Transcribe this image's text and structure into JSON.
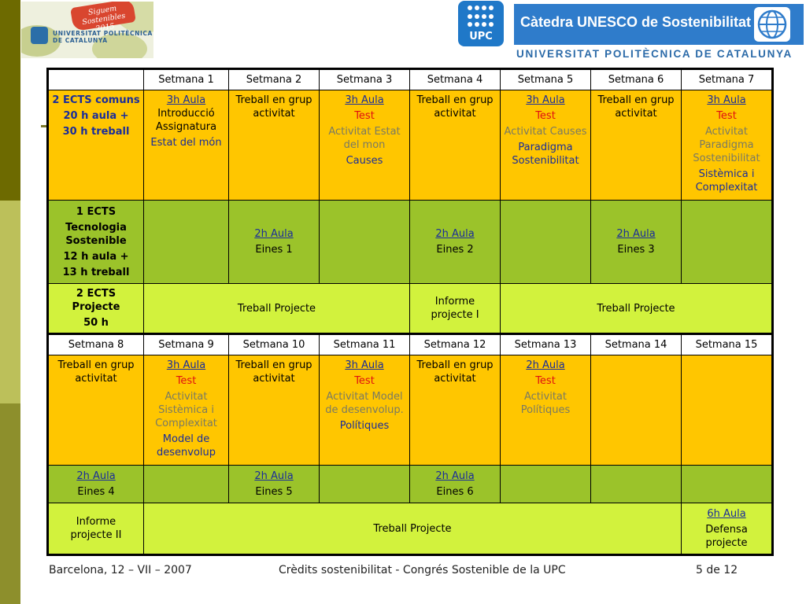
{
  "header": {
    "left_logo": {
      "line1": "Siguem",
      "line2": "Sostenibles 2015",
      "line3": "UNIVERSITAT POLITÈCNICA",
      "line4": "DE CATALUNYA"
    },
    "upc_logo": "UPC",
    "unesco_title": "Càtedra UNESCO de Sostenibilitat",
    "university": "UNIVERSITAT POLITÈCNICA DE CATALUNYA"
  },
  "table": {
    "week_headers_1": [
      "Setmana 1",
      "Setmana 2",
      "Setmana 3",
      "Setmana 4",
      "Setmana 5",
      "Setmana 6",
      "Setmana 7"
    ],
    "week_headers_2": [
      "Setmana 8",
      "Setmana 9",
      "Setmana 10",
      "Setmana 11",
      "Setmana 12",
      "Setmana 13",
      "Setmana 14",
      "Setmana 15"
    ],
    "row_comuns": {
      "label": [
        "2 ECTS comuns",
        "20 h aula +",
        "30 h treball"
      ],
      "w1": [
        "3h Aula",
        "Introducció Assignatura",
        "Estat del món"
      ],
      "w2": "Treball en grup activitat",
      "w3": [
        "3h Aula",
        "Test",
        "Activitat Estat del mon",
        "Causes"
      ],
      "w4": "Treball en grup activitat",
      "w5": [
        "3h Aula",
        "Test",
        "Activitat Causes",
        "Paradigma Sostenibilitat"
      ],
      "w6": "Treball en grup activitat",
      "w7": [
        "3h Aula",
        "Test",
        "Activitat Paradigma Sostenibilitat",
        "Sistèmica i Complexitat"
      ]
    },
    "row_tecnologia": {
      "label": [
        "1 ECTS",
        "Tecnologia Sostenible",
        "12 h aula +",
        "13 h treball"
      ],
      "w2": [
        "2h Aula",
        "Eines 1"
      ],
      "w4": [
        "2h Aula",
        "Eines 2"
      ],
      "w6": [
        "2h Aula",
        "Eines 3"
      ]
    },
    "row_projecte": {
      "label": [
        "2 ECTS Projecte",
        "50 h"
      ],
      "span1": "Treball Projecte",
      "w4": "Informe projecte I",
      "span2": "Treball Projecte"
    },
    "row_comuns_2": {
      "w8": "Treball en grup activitat",
      "w9": [
        "3h Aula",
        "Test",
        "Activitat Sistèmica i Complexitat",
        "Model de desenvolup"
      ],
      "w10": "Treball en grup activitat",
      "w11": [
        "3h Aula",
        "Test",
        "Activitat Model de desenvolup.",
        "Polítiques"
      ],
      "w12": "Treball en grup activitat",
      "w13": [
        "2h Aula",
        "Test",
        "Activitat Polítiques"
      ]
    },
    "row_tecnologia_2": {
      "w8": [
        "2h Aula",
        "Eines 4"
      ],
      "w10": [
        "2h Aula",
        "Eines 5"
      ],
      "w12": [
        "2h Aula",
        "Eines 6"
      ]
    },
    "row_projecte_2": {
      "w8": "Informe projecte II",
      "span": "Treball Projecte",
      "w15": [
        "6h Aula",
        "Defensa projecte"
      ]
    }
  },
  "footer": {
    "left": "Barcelona, 12 – VII – 2007",
    "center": "Crèdits sostenibilitat - Congrés Sostenible de la UPC",
    "right": "5 de 12"
  }
}
